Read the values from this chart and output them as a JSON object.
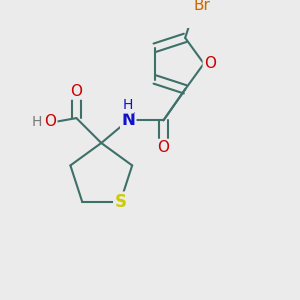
{
  "background_color": "#ebebeb",
  "bond_color": "#3d7068",
  "bond_width": 1.5,
  "fig_width": 3.0,
  "fig_height": 3.0,
  "dpi": 100,
  "colors": {
    "S": "#cccc00",
    "O": "#cc0000",
    "N": "#1111cc",
    "Br": "#cc6600",
    "H": "#777777",
    "C": "#3d7068"
  }
}
